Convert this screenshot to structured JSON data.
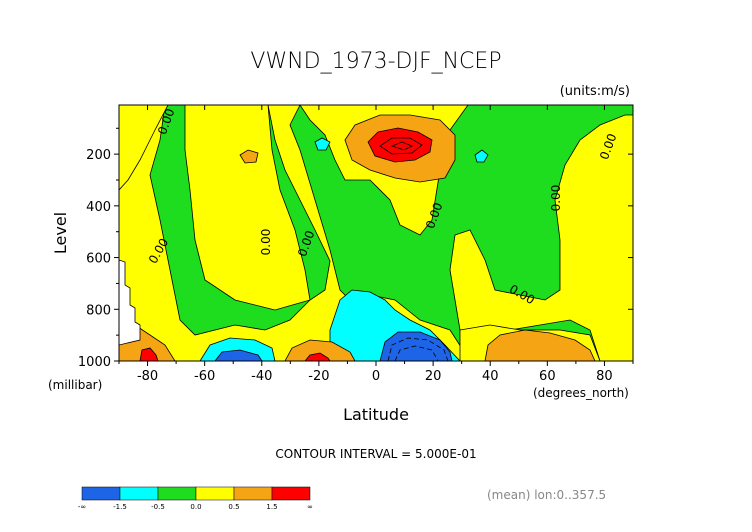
{
  "chart_data": {
    "type": "contour",
    "title": "VWND_1973-DJF_NCEP",
    "units_label": "(units:m/s)",
    "xlabel": "Latitude",
    "ylabel": "Level",
    "x_unit_label": "(degrees_north)",
    "y_unit_label": "(millibar)",
    "xlim": [
      -90,
      90
    ],
    "ylim": [
      1000,
      10
    ],
    "x_ticks": [
      -80,
      -60,
      -40,
      -20,
      0,
      20,
      40,
      60,
      80
    ],
    "x_tick_labels": [
      "-80",
      "-60",
      "-40",
      "-20",
      "0",
      "20",
      "40",
      "60",
      "80"
    ],
    "y_ticks": [
      200,
      400,
      600,
      800,
      1000
    ],
    "y_tick_labels": [
      "200",
      "400",
      "600",
      "800",
      "1000"
    ],
    "contour_interval_text": "CONTOUR INTERVAL = 5.000E-01",
    "footer_text": "(mean) lon:0..357.5",
    "contour_labels": [
      "0.00",
      "0.00",
      "0.00",
      "0.00",
      "0.00",
      "0.00",
      "0.00",
      "0.00"
    ],
    "colorbar": {
      "colors": [
        "#1e64e6",
        "#00ffff",
        "#1edc1e",
        "#ffff00",
        "#f5a514",
        "#ff0000"
      ],
      "tick_labels": [
        "-∞",
        "-1.5",
        "-0.5",
        "0.0",
        "0.5",
        "1.5",
        "∞"
      ]
    }
  }
}
